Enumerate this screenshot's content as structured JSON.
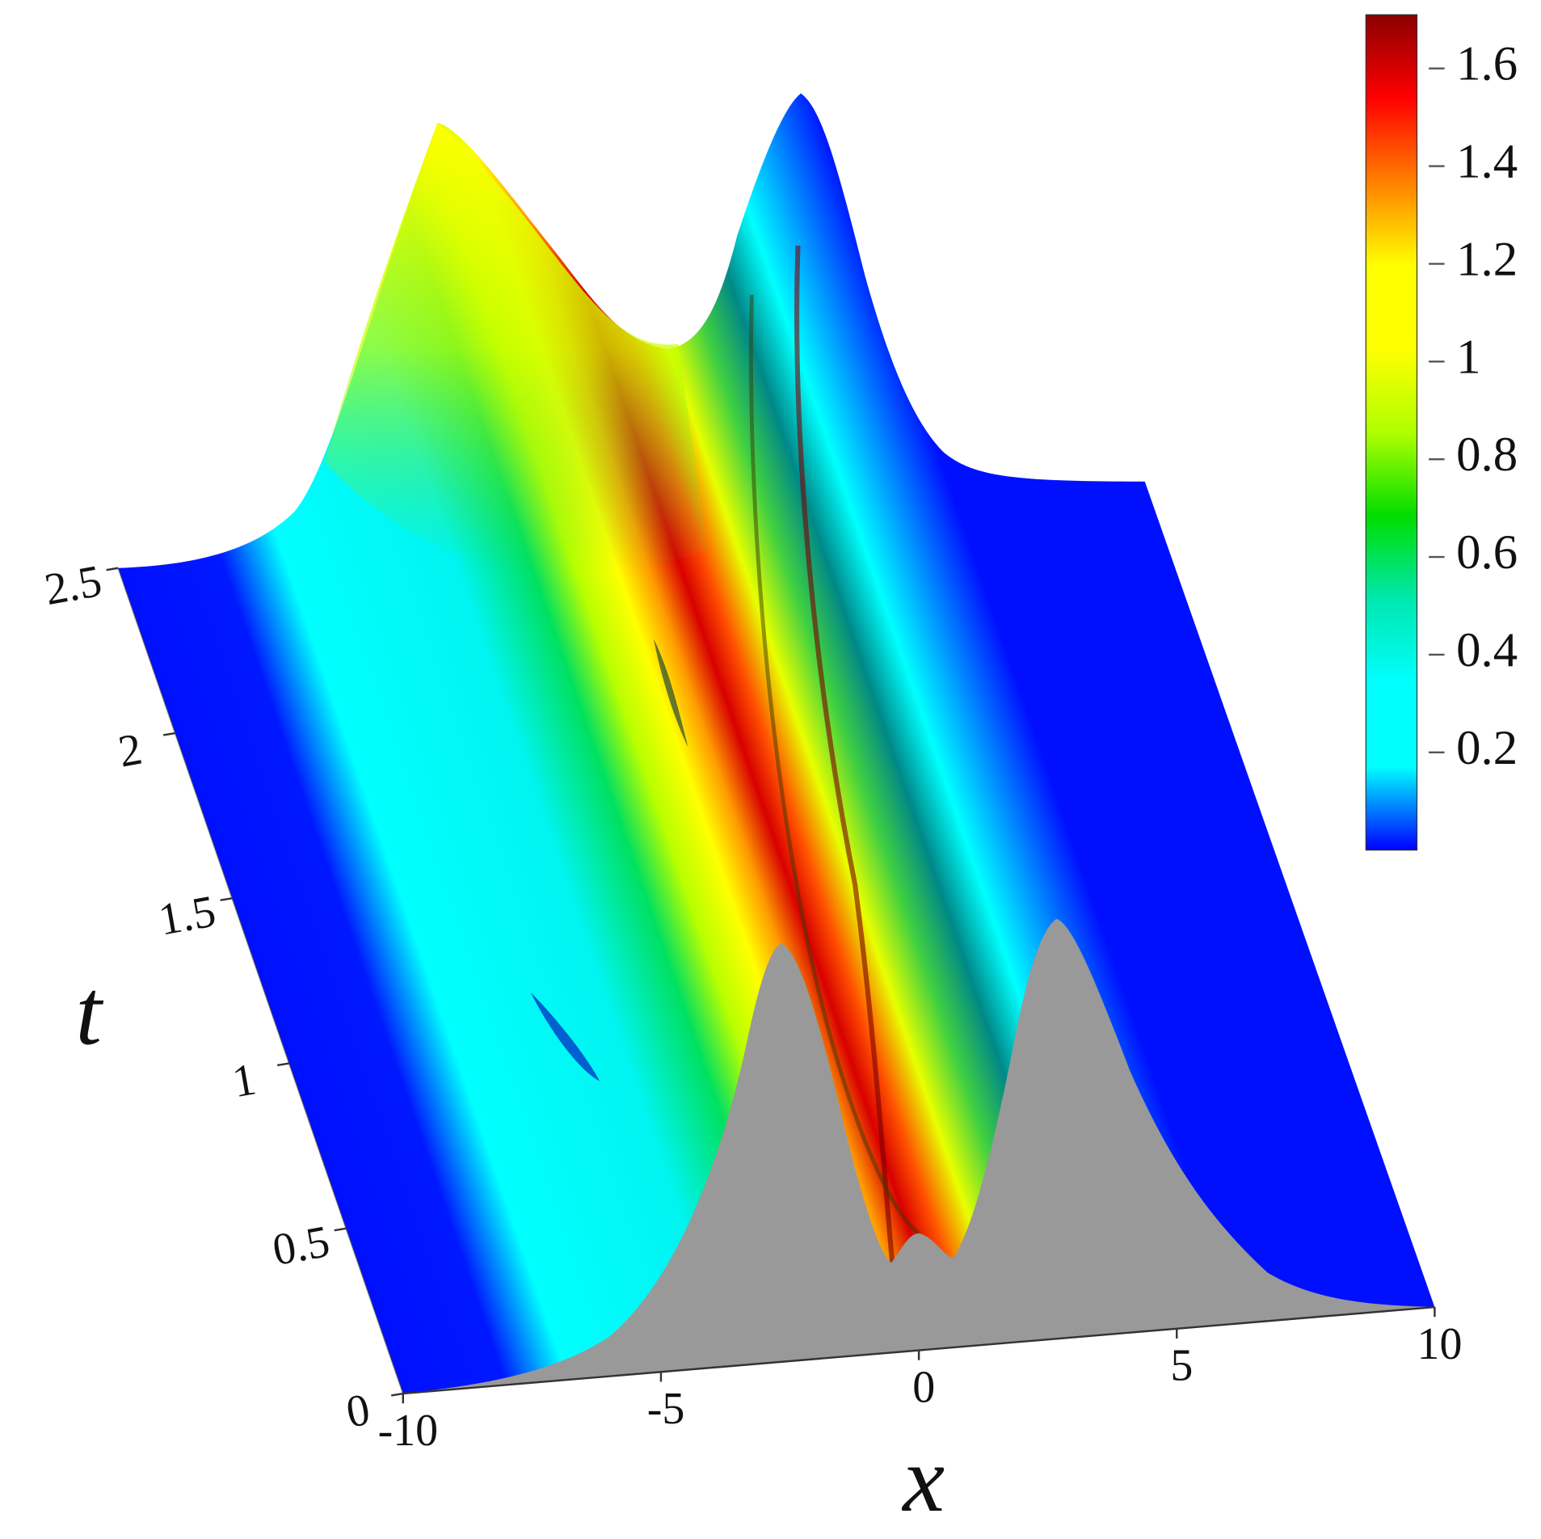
{
  "chart_data": {
    "type": "surface",
    "x_label": "x",
    "y_label": "t",
    "xlim": [
      -10,
      10
    ],
    "ylim": [
      0,
      2.5
    ],
    "xticks": [
      -10,
      -5,
      0,
      5,
      10
    ],
    "yticks": [
      0,
      0.5,
      1,
      1.5,
      2,
      2.5
    ],
    "colorbar": {
      "clim": [
        0,
        1.71
      ],
      "ticks": [
        0.2,
        0.4,
        0.6,
        0.8,
        1,
        1.2,
        1.4,
        1.6
      ],
      "colors": [
        "#0000ff",
        "#00ffff",
        "#00ffff",
        "#00e8b0",
        "#00dd00",
        "#b0ff00",
        "#ffff00",
        "#ffff00",
        "#ff8000",
        "#ff0000",
        "#8b0000"
      ]
    }
  }
}
